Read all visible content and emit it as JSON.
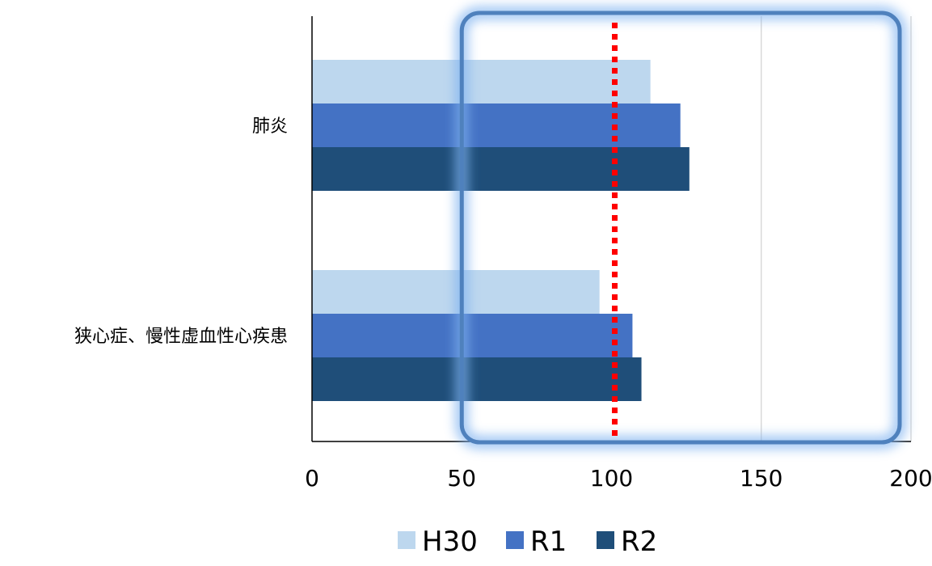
{
  "chart_data": {
    "type": "bar",
    "orientation": "horizontal",
    "categories": [
      "肺炎",
      "狭心症、慢性虚血性心疾患"
    ],
    "series": [
      {
        "name": "H30",
        "color": "#bdd7ee",
        "values": [
          113,
          96
        ]
      },
      {
        "name": "R1",
        "color": "#4472c4",
        "values": [
          123,
          107
        ]
      },
      {
        "name": "R2",
        "color": "#1f4e79",
        "values": [
          126,
          110
        ]
      }
    ],
    "x_ticks": [
      "0",
      "50",
      "100",
      "150",
      "200"
    ],
    "xlim": [
      0,
      200
    ],
    "gridlines": [
      150,
      200
    ],
    "reference_line": {
      "value": 100,
      "color": "#ff0000",
      "style": "dotted"
    },
    "highlight_box": {
      "from": 50,
      "to": 200,
      "color": "#4f81bd"
    },
    "legend_position": "bottom",
    "title": "",
    "xlabel": "",
    "ylabel": ""
  }
}
